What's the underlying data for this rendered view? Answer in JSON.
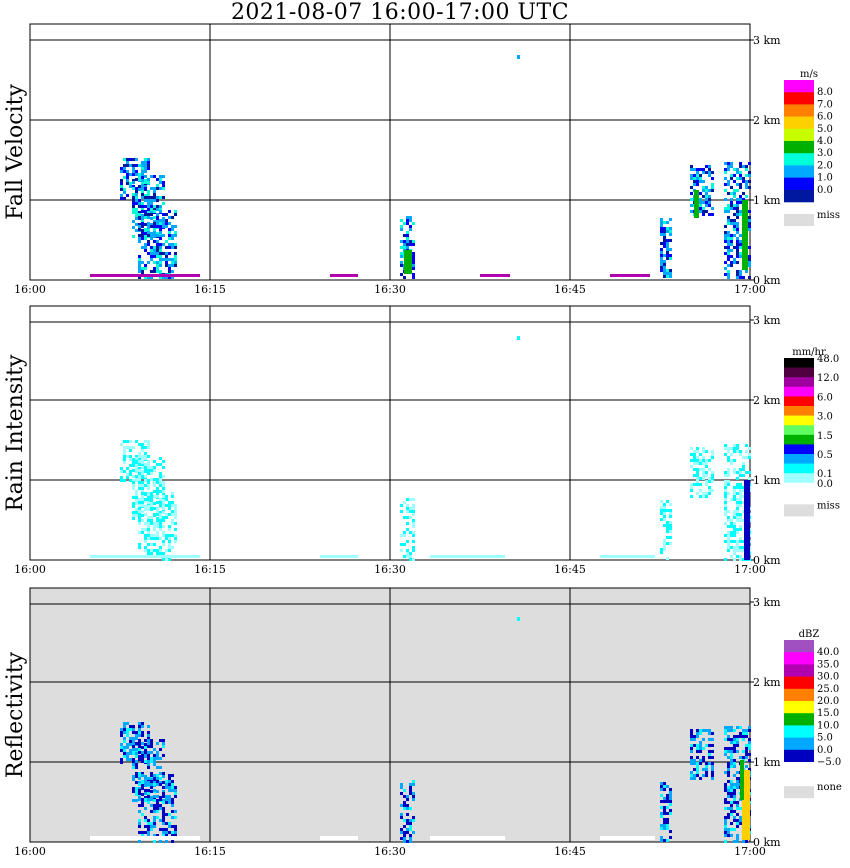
{
  "title": "2021-08-07   16:00-17:00 UTC",
  "chart_data": [
    {
      "type": "heatmap",
      "ylabel": "Fall Velocity",
      "x_ticks": [
        "16:00",
        "16:15",
        "16:30",
        "16:45",
        "17:00"
      ],
      "y_ticks": [
        "0 km",
        "1 km",
        "2 km",
        "3 km"
      ],
      "ylim": [
        0,
        3
      ],
      "background": "#ffffff",
      "colorbar": {
        "unit": "m/s",
        "labels": [
          "8.0",
          "7.0",
          "6.0",
          "5.0",
          "4.0",
          "3.0",
          "2.0",
          "1.0",
          "0.0"
        ],
        "colors": [
          "#ff00ff",
          "#ff0000",
          "#ff8000",
          "#ffd000",
          "#c8ff00",
          "#00b000",
          "#00ffd8",
          "#00a8ff",
          "#0000ff",
          "#0018a0"
        ],
        "missing_label": "miss",
        "missing_color": "#dddddd"
      }
    },
    {
      "type": "heatmap",
      "ylabel": "Rain Intensity",
      "x_ticks": [
        "16:00",
        "16:15",
        "16:30",
        "16:45",
        "17:00"
      ],
      "y_ticks": [
        "0 km",
        "1 km",
        "2 km",
        "3 km"
      ],
      "ylim": [
        0,
        3
      ],
      "background": "#ffffff",
      "colorbar": {
        "unit": "mm/hr",
        "labels": [
          "48.0",
          "12.0",
          "6.0",
          "3.0",
          "1.5",
          "0.5",
          "0.1",
          "0.0"
        ],
        "colors": [
          "#000000",
          "#500040",
          "#a000a0",
          "#ff00ff",
          "#ff0000",
          "#ff8000",
          "#ffff00",
          "#60ff60",
          "#00b000",
          "#0000ff",
          "#00a8ff",
          "#00ffff",
          "#a0ffff",
          "#ffffff"
        ],
        "missing_label": "miss",
        "missing_color": "#dddddd"
      }
    },
    {
      "type": "heatmap",
      "ylabel": "Reflectivity",
      "x_ticks": [
        "16:00",
        "16:15",
        "16:30",
        "16:45",
        "17:00"
      ],
      "y_ticks": [
        "0 km",
        "1 km",
        "2 km",
        "3 km"
      ],
      "ylim": [
        0,
        3
      ],
      "background": "#dddddd",
      "colorbar": {
        "unit": "dBZ",
        "labels": [
          "40.0",
          "35.0",
          "30.0",
          "25.0",
          "20.0",
          "15.0",
          "10.0",
          "5.0",
          "0.0",
          "−5.0"
        ],
        "colors": [
          "#a050c0",
          "#ff00ff",
          "#b000b0",
          "#ff0000",
          "#ff8000",
          "#ffff00",
          "#00b000",
          "#00ffff",
          "#00a8ff",
          "#0000c0",
          "#ffffff"
        ],
        "missing_label": "none",
        "missing_color": "#dddddd"
      }
    }
  ]
}
